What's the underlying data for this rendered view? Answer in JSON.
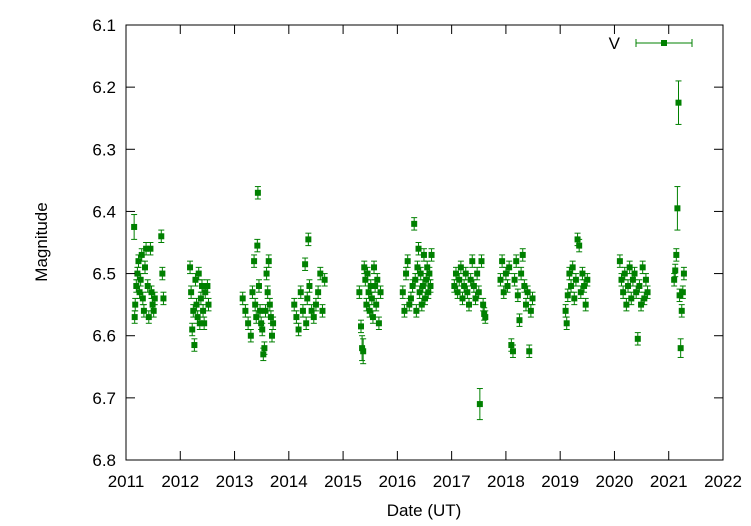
{
  "chart_data": {
    "type": "scatter",
    "xlabel": "Date (UT)",
    "ylabel": "Magnitude",
    "xlim": [
      2011,
      2022
    ],
    "ylim": [
      6.1,
      6.8
    ],
    "y_inverted": true,
    "x_ticks": [
      2011,
      2012,
      2013,
      2014,
      2015,
      2016,
      2017,
      2018,
      2019,
      2020,
      2021,
      2022
    ],
    "y_ticks": [
      "6.1",
      "6.2",
      "6.3",
      "6.4",
      "6.5",
      "6.6",
      "6.7",
      "6.8"
    ],
    "legend_position": "top-right",
    "grid": false,
    "series": [
      {
        "name": "V",
        "color": "#008000",
        "marker": "square",
        "points": [
          [
            2011.15,
            6.425,
            0.02
          ],
          [
            2011.16,
            6.57,
            0.01
          ],
          [
            2011.17,
            6.55,
            0.01
          ],
          [
            2011.19,
            6.52,
            0.01
          ],
          [
            2011.21,
            6.5,
            0.01
          ],
          [
            2011.23,
            6.48,
            0.01
          ],
          [
            2011.25,
            6.53,
            0.01
          ],
          [
            2011.27,
            6.51,
            0.01
          ],
          [
            2011.29,
            6.47,
            0.01
          ],
          [
            2011.31,
            6.54,
            0.01
          ],
          [
            2011.33,
            6.56,
            0.01
          ],
          [
            2011.35,
            6.49,
            0.01
          ],
          [
            2011.37,
            6.46,
            0.01
          ],
          [
            2011.4,
            6.52,
            0.01
          ],
          [
            2011.42,
            6.57,
            0.01
          ],
          [
            2011.45,
            6.46,
            0.01
          ],
          [
            2011.47,
            6.53,
            0.01
          ],
          [
            2011.49,
            6.55,
            0.01
          ],
          [
            2011.51,
            6.56,
            0.01
          ],
          [
            2011.53,
            6.54,
            0.01
          ],
          [
            2011.65,
            6.44,
            0.01
          ],
          [
            2011.67,
            6.5,
            0.01
          ],
          [
            2011.69,
            6.54,
            0.01
          ],
          [
            2012.18,
            6.49,
            0.01
          ],
          [
            2012.2,
            6.53,
            0.01
          ],
          [
            2012.22,
            6.59,
            0.01
          ],
          [
            2012.24,
            6.56,
            0.01
          ],
          [
            2012.26,
            6.615,
            0.01
          ],
          [
            2012.28,
            6.51,
            0.01
          ],
          [
            2012.3,
            6.55,
            0.01
          ],
          [
            2012.32,
            6.57,
            0.01
          ],
          [
            2012.34,
            6.5,
            0.01
          ],
          [
            2012.36,
            6.58,
            0.01
          ],
          [
            2012.38,
            6.54,
            0.01
          ],
          [
            2012.4,
            6.52,
            0.01
          ],
          [
            2012.42,
            6.56,
            0.01
          ],
          [
            2012.44,
            6.58,
            0.01
          ],
          [
            2012.46,
            6.53,
            0.01
          ],
          [
            2012.5,
            6.52,
            0.01
          ],
          [
            2012.52,
            6.55,
            0.01
          ],
          [
            2013.15,
            6.54,
            0.01
          ],
          [
            2013.2,
            6.56,
            0.01
          ],
          [
            2013.25,
            6.58,
            0.01
          ],
          [
            2013.3,
            6.6,
            0.01
          ],
          [
            2013.33,
            6.53,
            0.01
          ],
          [
            2013.36,
            6.48,
            0.01
          ],
          [
            2013.38,
            6.55,
            0.01
          ],
          [
            2013.4,
            6.57,
            0.01
          ],
          [
            2013.42,
            6.455,
            0.01
          ],
          [
            2013.43,
            6.37,
            0.01
          ],
          [
            2013.45,
            6.52,
            0.01
          ],
          [
            2013.47,
            6.56,
            0.01
          ],
          [
            2013.49,
            6.58,
            0.01
          ],
          [
            2013.51,
            6.59,
            0.01
          ],
          [
            2013.53,
            6.63,
            0.01
          ],
          [
            2013.55,
            6.62,
            0.01
          ],
          [
            2013.57,
            6.56,
            0.01
          ],
          [
            2013.59,
            6.5,
            0.01
          ],
          [
            2013.61,
            6.53,
            0.01
          ],
          [
            2013.63,
            6.48,
            0.01
          ],
          [
            2013.65,
            6.55,
            0.01
          ],
          [
            2013.67,
            6.57,
            0.01
          ],
          [
            2013.69,
            6.6,
            0.01
          ],
          [
            2013.71,
            6.58,
            0.01
          ],
          [
            2014.1,
            6.55,
            0.01
          ],
          [
            2014.14,
            6.57,
            0.01
          ],
          [
            2014.18,
            6.59,
            0.01
          ],
          [
            2014.22,
            6.53,
            0.01
          ],
          [
            2014.26,
            6.56,
            0.01
          ],
          [
            2014.3,
            6.485,
            0.01
          ],
          [
            2014.32,
            6.58,
            0.01
          ],
          [
            2014.34,
            6.54,
            0.01
          ],
          [
            2014.36,
            6.445,
            0.01
          ],
          [
            2014.38,
            6.52,
            0.01
          ],
          [
            2014.42,
            6.56,
            0.01
          ],
          [
            2014.46,
            6.57,
            0.01
          ],
          [
            2014.5,
            6.55,
            0.01
          ],
          [
            2014.54,
            6.53,
            0.01
          ],
          [
            2014.58,
            6.5,
            0.01
          ],
          [
            2014.62,
            6.56,
            0.01
          ],
          [
            2014.66,
            6.51,
            0.01
          ],
          [
            2015.3,
            6.53,
            0.01
          ],
          [
            2015.33,
            6.585,
            0.01
          ],
          [
            2015.35,
            6.62,
            0.02
          ],
          [
            2015.37,
            6.625,
            0.02
          ],
          [
            2015.39,
            6.49,
            0.01
          ],
          [
            2015.41,
            6.51,
            0.01
          ],
          [
            2015.43,
            6.55,
            0.01
          ],
          [
            2015.45,
            6.5,
            0.01
          ],
          [
            2015.47,
            6.53,
            0.01
          ],
          [
            2015.49,
            6.56,
            0.01
          ],
          [
            2015.51,
            6.52,
            0.01
          ],
          [
            2015.53,
            6.54,
            0.01
          ],
          [
            2015.55,
            6.57,
            0.01
          ],
          [
            2015.57,
            6.49,
            0.01
          ],
          [
            2015.59,
            6.52,
            0.01
          ],
          [
            2015.61,
            6.55,
            0.01
          ],
          [
            2015.63,
            6.51,
            0.01
          ],
          [
            2015.66,
            6.58,
            0.01
          ],
          [
            2015.69,
            6.53,
            0.01
          ],
          [
            2016.1,
            6.53,
            0.01
          ],
          [
            2016.13,
            6.56,
            0.01
          ],
          [
            2016.16,
            6.5,
            0.01
          ],
          [
            2016.19,
            6.48,
            0.01
          ],
          [
            2016.22,
            6.55,
            0.01
          ],
          [
            2016.25,
            6.54,
            0.01
          ],
          [
            2016.28,
            6.52,
            0.01
          ],
          [
            2016.31,
            6.42,
            0.01
          ],
          [
            2016.33,
            6.51,
            0.01
          ],
          [
            2016.35,
            6.56,
            0.01
          ],
          [
            2016.37,
            6.49,
            0.01
          ],
          [
            2016.39,
            6.46,
            0.01
          ],
          [
            2016.41,
            6.53,
            0.01
          ],
          [
            2016.43,
            6.5,
            0.01
          ],
          [
            2016.45,
            6.55,
            0.01
          ],
          [
            2016.47,
            6.52,
            0.01
          ],
          [
            2016.49,
            6.47,
            0.01
          ],
          [
            2016.51,
            6.54,
            0.01
          ],
          [
            2016.53,
            6.51,
            0.01
          ],
          [
            2016.55,
            6.49,
            0.01
          ],
          [
            2016.57,
            6.53,
            0.01
          ],
          [
            2016.59,
            6.5,
            0.01
          ],
          [
            2016.61,
            6.52,
            0.01
          ],
          [
            2016.63,
            6.47,
            0.01
          ],
          [
            2017.05,
            6.52,
            0.01
          ],
          [
            2017.08,
            6.5,
            0.01
          ],
          [
            2017.11,
            6.53,
            0.01
          ],
          [
            2017.14,
            6.51,
            0.01
          ],
          [
            2017.17,
            6.49,
            0.01
          ],
          [
            2017.2,
            6.54,
            0.01
          ],
          [
            2017.23,
            6.52,
            0.01
          ],
          [
            2017.26,
            6.5,
            0.01
          ],
          [
            2017.29,
            6.53,
            0.01
          ],
          [
            2017.32,
            6.55,
            0.01
          ],
          [
            2017.35,
            6.51,
            0.01
          ],
          [
            2017.38,
            6.48,
            0.01
          ],
          [
            2017.41,
            6.52,
            0.01
          ],
          [
            2017.44,
            6.54,
            0.01
          ],
          [
            2017.47,
            6.5,
            0.01
          ],
          [
            2017.5,
            6.53,
            0.01
          ],
          [
            2017.52,
            6.71,
            0.025
          ],
          [
            2017.55,
            6.48,
            0.01
          ],
          [
            2017.58,
            6.55,
            0.01
          ],
          [
            2017.6,
            6.565,
            0.01
          ],
          [
            2017.62,
            6.57,
            0.01
          ],
          [
            2017.9,
            6.51,
            0.01
          ],
          [
            2017.93,
            6.48,
            0.01
          ],
          [
            2017.96,
            6.53,
            0.01
          ],
          [
            2018.0,
            6.5,
            0.01
          ],
          [
            2018.03,
            6.52,
            0.01
          ],
          [
            2018.06,
            6.49,
            0.01
          ],
          [
            2018.1,
            6.615,
            0.01
          ],
          [
            2018.13,
            6.625,
            0.01
          ],
          [
            2018.16,
            6.51,
            0.01
          ],
          [
            2018.19,
            6.48,
            0.01
          ],
          [
            2018.22,
            6.535,
            0.01
          ],
          [
            2018.25,
            6.575,
            0.01
          ],
          [
            2018.28,
            6.5,
            0.01
          ],
          [
            2018.31,
            6.47,
            0.01
          ],
          [
            2018.34,
            6.52,
            0.01
          ],
          [
            2018.37,
            6.55,
            0.01
          ],
          [
            2018.4,
            6.53,
            0.01
          ],
          [
            2018.43,
            6.625,
            0.01
          ],
          [
            2018.46,
            6.56,
            0.01
          ],
          [
            2018.49,
            6.54,
            0.01
          ],
          [
            2019.1,
            6.56,
            0.01
          ],
          [
            2019.12,
            6.58,
            0.01
          ],
          [
            2019.14,
            6.535,
            0.01
          ],
          [
            2019.17,
            6.5,
            0.01
          ],
          [
            2019.2,
            6.52,
            0.01
          ],
          [
            2019.23,
            6.49,
            0.01
          ],
          [
            2019.26,
            6.54,
            0.01
          ],
          [
            2019.29,
            6.51,
            0.01
          ],
          [
            2019.32,
            6.445,
            0.01
          ],
          [
            2019.35,
            6.455,
            0.01
          ],
          [
            2019.38,
            6.53,
            0.01
          ],
          [
            2019.41,
            6.5,
            0.01
          ],
          [
            2019.44,
            6.52,
            0.01
          ],
          [
            2019.47,
            6.55,
            0.01
          ],
          [
            2019.5,
            6.51,
            0.01
          ],
          [
            2020.1,
            6.48,
            0.01
          ],
          [
            2020.13,
            6.51,
            0.01
          ],
          [
            2020.16,
            6.53,
            0.01
          ],
          [
            2020.19,
            6.5,
            0.01
          ],
          [
            2020.22,
            6.55,
            0.01
          ],
          [
            2020.25,
            6.52,
            0.01
          ],
          [
            2020.28,
            6.49,
            0.01
          ],
          [
            2020.31,
            6.54,
            0.01
          ],
          [
            2020.34,
            6.51,
            0.01
          ],
          [
            2020.37,
            6.5,
            0.01
          ],
          [
            2020.4,
            6.53,
            0.01
          ],
          [
            2020.43,
            6.605,
            0.01
          ],
          [
            2020.46,
            6.52,
            0.01
          ],
          [
            2020.49,
            6.55,
            0.01
          ],
          [
            2020.52,
            6.49,
            0.01
          ],
          [
            2020.55,
            6.54,
            0.01
          ],
          [
            2020.58,
            6.51,
            0.01
          ],
          [
            2020.61,
            6.53,
            0.01
          ],
          [
            2021.1,
            6.51,
            0.01
          ],
          [
            2021.12,
            6.495,
            0.01
          ],
          [
            2021.14,
            6.47,
            0.01
          ],
          [
            2021.16,
            6.395,
            0.035
          ],
          [
            2021.18,
            6.225,
            0.035
          ],
          [
            2021.2,
            6.535,
            0.01
          ],
          [
            2021.22,
            6.62,
            0.015
          ],
          [
            2021.24,
            6.56,
            0.01
          ],
          [
            2021.26,
            6.53,
            0.01
          ],
          [
            2021.28,
            6.5,
            0.01
          ]
        ]
      }
    ]
  }
}
